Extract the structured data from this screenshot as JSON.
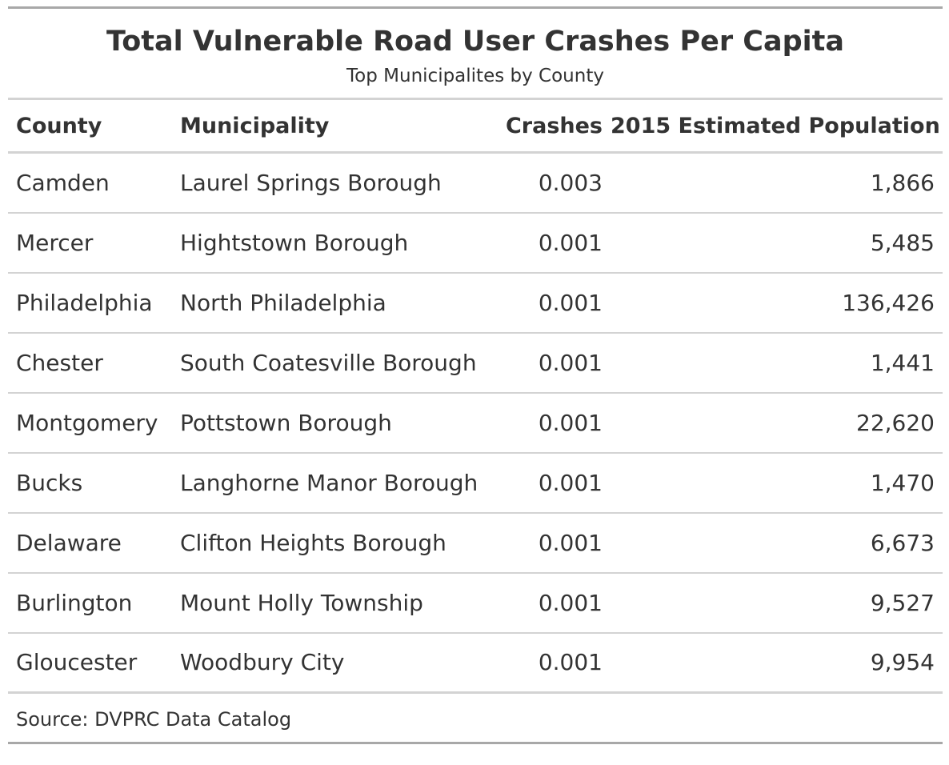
{
  "chart_data": {
    "type": "table",
    "title": "Total Vulnerable Road User Crashes Per Capita",
    "subtitle": "Top Municipalites by County",
    "columns": [
      "County",
      "Municipality",
      "Crashes",
      "2015 Estimated Population"
    ],
    "rows": [
      {
        "county": "Camden",
        "municipality": "Laurel Springs Borough",
        "crashes": "0.003",
        "population": "1,866"
      },
      {
        "county": "Mercer",
        "municipality": "Hightstown Borough",
        "crashes": "0.001",
        "population": "5,485"
      },
      {
        "county": "Philadelphia",
        "municipality": "North Philadelphia",
        "crashes": "0.001",
        "population": "136,426"
      },
      {
        "county": "Chester",
        "municipality": "South Coatesville Borough",
        "crashes": "0.001",
        "population": "1,441"
      },
      {
        "county": "Montgomery",
        "municipality": "Pottstown Borough",
        "crashes": "0.001",
        "population": "22,620"
      },
      {
        "county": "Bucks",
        "municipality": "Langhorne Manor Borough",
        "crashes": "0.001",
        "population": "1,470"
      },
      {
        "county": "Delaware",
        "municipality": "Clifton Heights Borough",
        "crashes": "0.001",
        "population": "6,673"
      },
      {
        "county": "Burlington",
        "municipality": "Mount Holly Township",
        "crashes": "0.001",
        "population": "9,527"
      },
      {
        "county": "Gloucester",
        "municipality": "Woodbury City",
        "crashes": "0.001",
        "population": "9,954"
      }
    ],
    "source_note": "Source: DVPRC Data Catalog"
  }
}
